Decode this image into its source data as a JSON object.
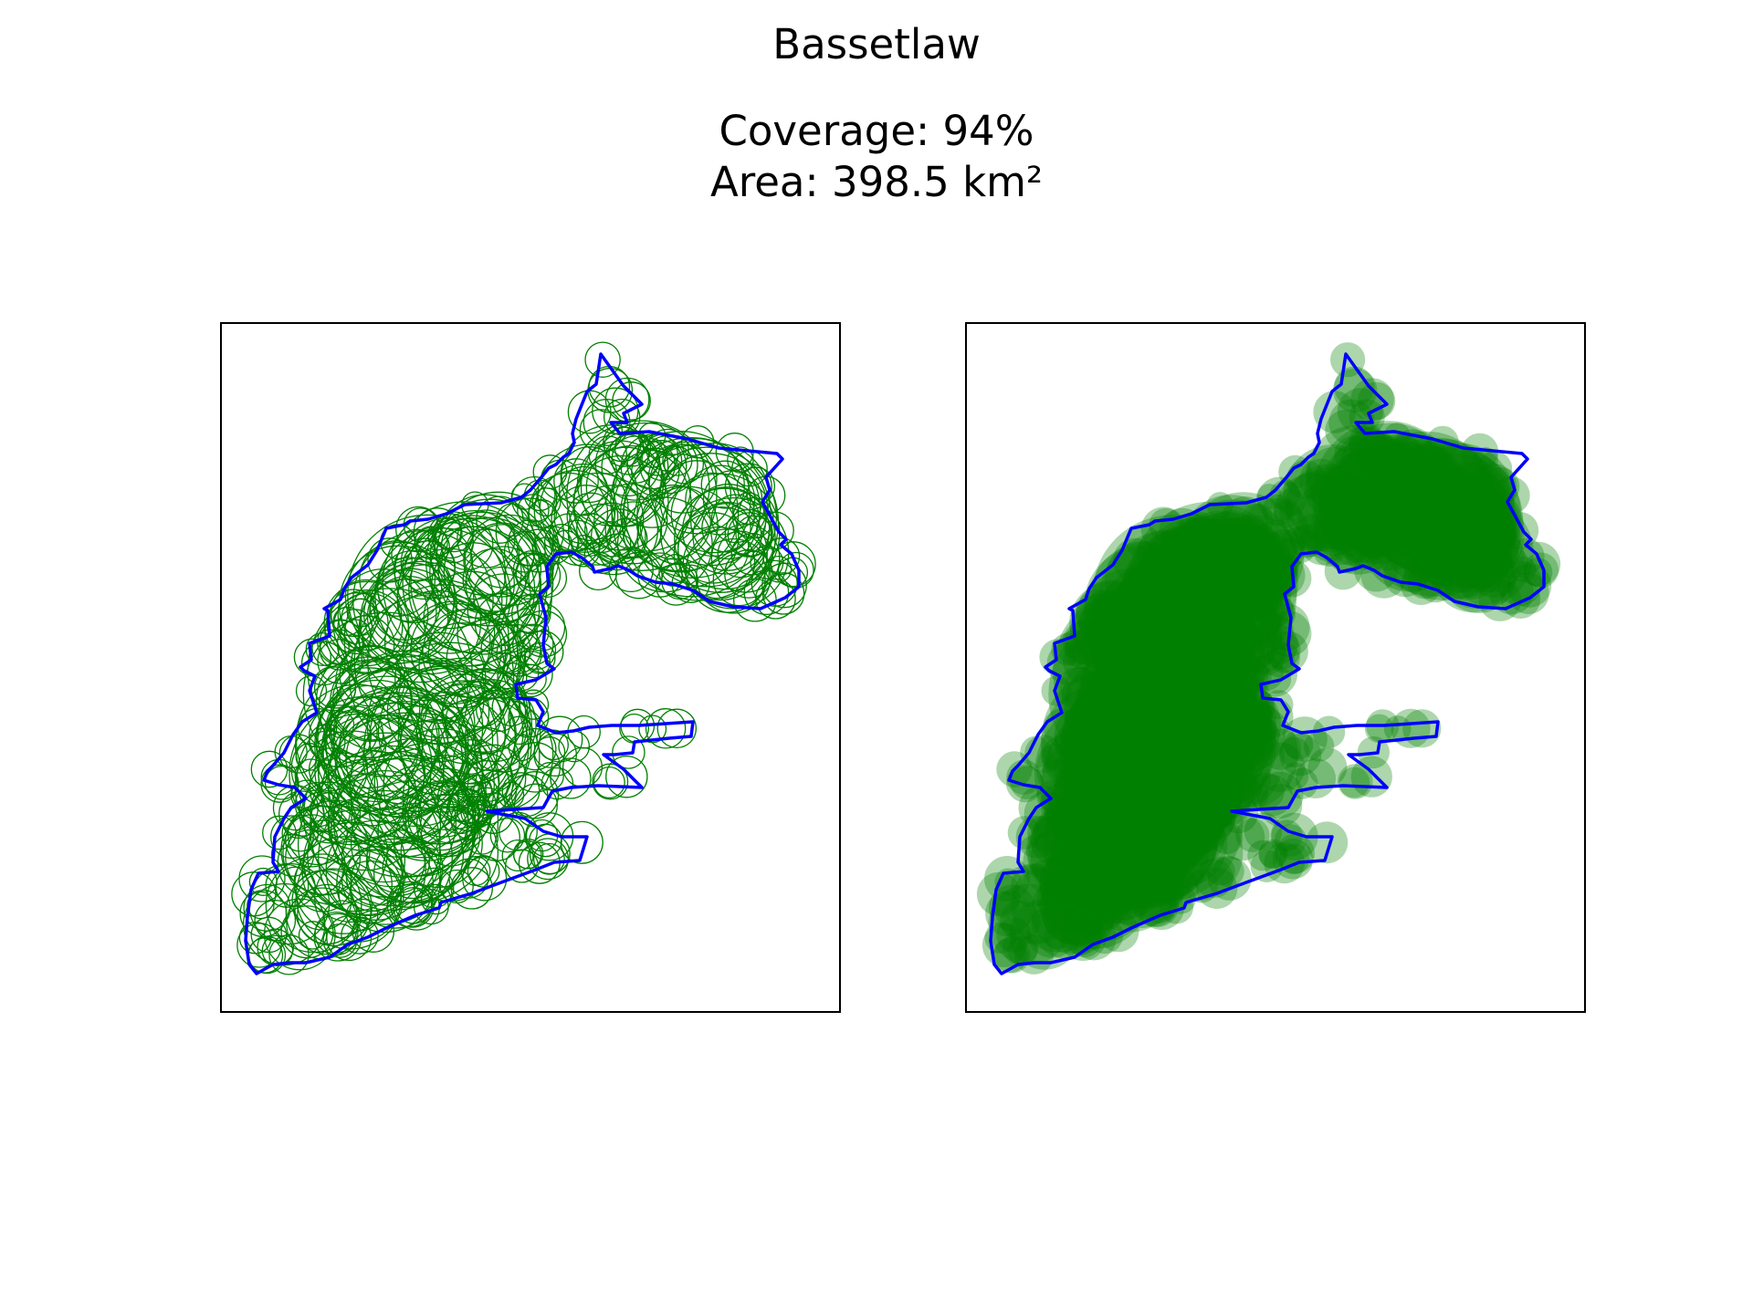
{
  "figure": {
    "title": "Bassetlaw",
    "coverage_text": "Coverage: 94%",
    "area_text": "Area: 398.5 km²"
  },
  "colors": {
    "boundary": "#0000ff",
    "circles": "#008000",
    "background": "#ffffff",
    "frame": "#000000"
  },
  "panels": [
    {
      "name": "circle-outlines",
      "style": "unfilled circles"
    },
    {
      "name": "circle-fill",
      "style": "filled translucent circles"
    }
  ]
}
